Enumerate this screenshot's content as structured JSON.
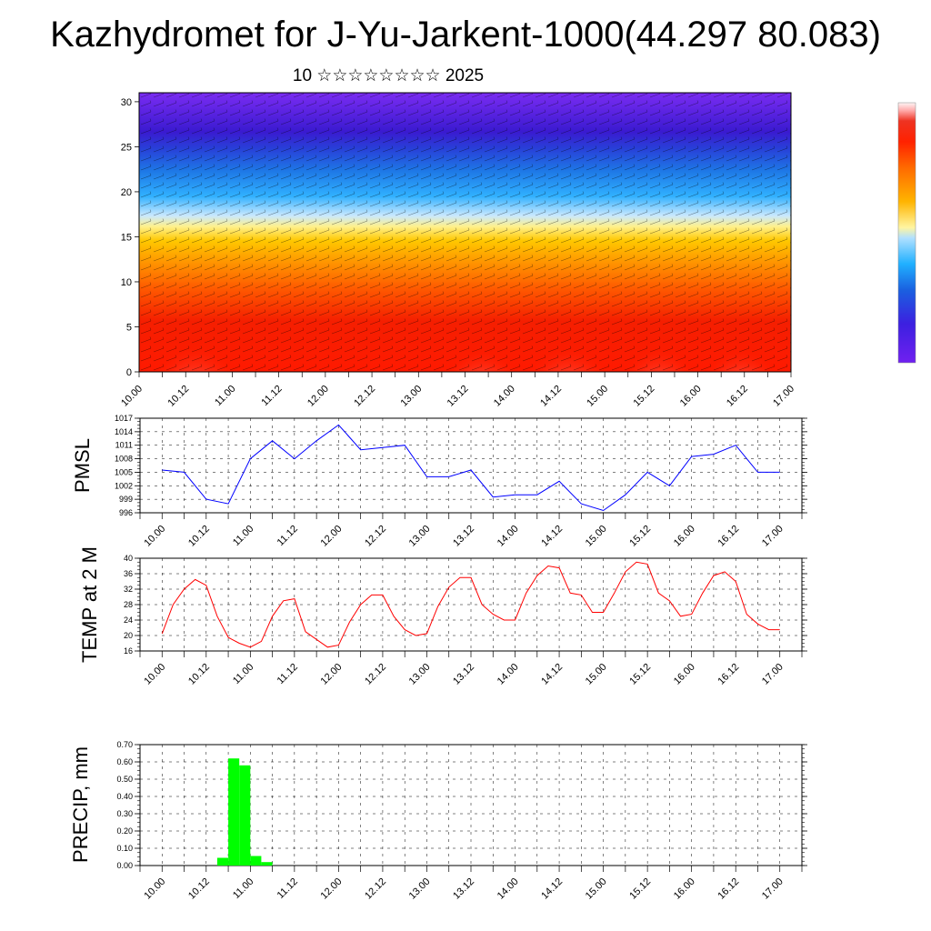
{
  "title": "Kazhydromet for J-Yu-Jarkent-1000(44.297 80.083)",
  "subtitle": "10 ☆☆☆☆☆☆☆☆ 2025",
  "time_labels": [
    "10.00",
    "10.12",
    "11.00",
    "11.12",
    "12.00",
    "12.12",
    "13.00",
    "13.12",
    "14.00",
    "14.12",
    "15.00",
    "15.12",
    "16.00",
    "16.12",
    "17.00"
  ],
  "colors": {
    "pmsl_line": "#0000ff",
    "temp_line": "#ff0000",
    "precip_bar": "#00ff00",
    "colorbar": [
      "#fff5f5",
      "#ffaaaa",
      "#ee3322",
      "#ff2200",
      "#ff6a00",
      "#ffb400",
      "#fff5a0",
      "#b0e0ff",
      "#20b0ff",
      "#1a60e0",
      "#3c20e0",
      "#7020f0"
    ]
  },
  "chart_data": [
    {
      "type": "heatmap",
      "name": "upper-panel",
      "y_ticks": [
        0,
        5,
        10,
        15,
        20,
        25,
        30
      ],
      "ylim": [
        0,
        31
      ],
      "xlim": [
        0,
        84
      ],
      "x_tick_hours": [
        0,
        12,
        24,
        36,
        48,
        60,
        72,
        84
      ],
      "note_bands_from_bottom": [
        "red",
        "orange",
        "yellow",
        "light-blue",
        "blue",
        "violet"
      ]
    },
    {
      "type": "line",
      "ylabel": "PMSL",
      "ylim": [
        996,
        1017
      ],
      "y_ticks": [
        "996",
        "999",
        "1002",
        "1005",
        "1008",
        "1011",
        "1014",
        "1017"
      ],
      "xlim": [
        -3,
        87
      ],
      "x_tick_hours": [
        0,
        12,
        24,
        36,
        48,
        60,
        72,
        84
      ],
      "x": [
        0,
        3,
        6,
        9,
        12,
        15,
        18,
        21,
        24,
        27,
        30,
        33,
        36,
        39,
        42,
        45,
        48,
        51,
        54,
        57,
        60,
        63,
        66,
        69,
        72,
        75,
        78,
        81,
        84
      ],
      "values": [
        1005.5,
        1005,
        999,
        998,
        1008,
        1012,
        1008,
        1012,
        1015.5,
        1010,
        1010.5,
        1011,
        1004,
        1004,
        1005.5,
        999.5,
        1000,
        1000,
        1003,
        998,
        996.5,
        1000,
        1005,
        1002,
        1008.5,
        1009,
        1011,
        1005,
        1005
      ]
    },
    {
      "type": "line",
      "ylabel": "TEMP at 2 M",
      "ylim": [
        16,
        40
      ],
      "y_ticks": [
        "16",
        "20",
        "24",
        "28",
        "32",
        "36",
        "40"
      ],
      "xlim": [
        -3,
        87
      ],
      "x_tick_hours": [
        0,
        12,
        24,
        36,
        48,
        60,
        72,
        84
      ],
      "x": [
        0,
        1.5,
        3,
        4.5,
        6,
        7.5,
        9,
        10.5,
        12,
        13.5,
        15,
        16.5,
        18,
        19.5,
        21,
        22.5,
        24,
        25.5,
        27,
        28.5,
        30,
        31.5,
        33,
        34.5,
        36,
        37.5,
        39,
        40.5,
        42,
        43.5,
        45,
        46.5,
        48,
        49.5,
        51,
        52.5,
        54,
        55.5,
        57,
        58.5,
        60,
        61.5,
        63,
        64.5,
        66,
        67.5,
        69,
        70.5,
        72,
        73.5,
        75,
        76.5,
        78,
        79.5,
        81,
        82.5,
        84
      ],
      "values": [
        20.5,
        28,
        32,
        34.5,
        33,
        25,
        19.5,
        18,
        17,
        18.5,
        25,
        29,
        29.5,
        21,
        19,
        17,
        17.5,
        23.5,
        28,
        30.5,
        30.5,
        25,
        21.5,
        20,
        20.5,
        27.5,
        32.5,
        35,
        35,
        28,
        25.5,
        24,
        24,
        31,
        35.5,
        38,
        37.5,
        31,
        30.5,
        26,
        26,
        31,
        36.5,
        39,
        38.5,
        31,
        29,
        25,
        25.5,
        31,
        35.5,
        36.5,
        34,
        25.5,
        23,
        21.5,
        21.5
      ]
    },
    {
      "type": "bar",
      "ylabel": "PRECIP, mm",
      "ylim": [
        0,
        0.7
      ],
      "y_ticks": [
        "0.00",
        "0.10",
        "0.20",
        "0.30",
        "0.40",
        "0.50",
        "0.60",
        "0.70"
      ],
      "xlim": [
        -3,
        87
      ],
      "x_tick_hours": [
        0,
        12,
        24,
        36,
        48,
        60,
        72,
        84
      ],
      "bar_width_hours": 1.5,
      "x": [
        7.5,
        9,
        10.5,
        12,
        13.5
      ],
      "values": [
        0.045,
        0.62,
        0.58,
        0.055,
        0.02
      ]
    }
  ]
}
